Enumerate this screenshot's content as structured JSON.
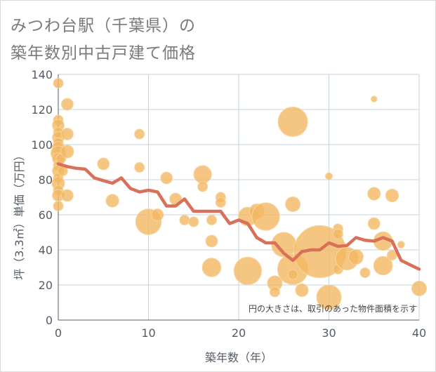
{
  "title_line1": "みつわ台駅（千葉県）の",
  "title_line2": "築年数別中古戸建て価格",
  "chart_data": {
    "type": "scatter",
    "xlabel": "築年数（年）",
    "ylabel": "坪（3.3㎡）単価（万円）",
    "xlim": [
      0,
      40
    ],
    "ylim": [
      0,
      140
    ],
    "xticks": [
      0,
      10,
      20,
      30,
      40
    ],
    "yticks": [
      0,
      20,
      40,
      60,
      80,
      100,
      120,
      140
    ],
    "grid": true,
    "note": "円の大きさは、取引のあった物件面積を示す",
    "colors": {
      "bubble": "#f2b861",
      "bubble_stroke": "#f7d49b",
      "line": "#d9705a",
      "grid": "#c5d3e0",
      "axis": "#555b66"
    },
    "bubbles": [
      {
        "x": 0,
        "y": 135,
        "s": 1.0
      },
      {
        "x": 0,
        "y": 114,
        "s": 1.0
      },
      {
        "x": 0,
        "y": 111,
        "s": 1.2
      },
      {
        "x": 0,
        "y": 107,
        "s": 1.0
      },
      {
        "x": 0,
        "y": 104,
        "s": 1.2
      },
      {
        "x": 0,
        "y": 101,
        "s": 1.0
      },
      {
        "x": 0,
        "y": 98,
        "s": 1.3
      },
      {
        "x": 0,
        "y": 95,
        "s": 1.5
      },
      {
        "x": 0,
        "y": 92,
        "s": 1.2
      },
      {
        "x": 0,
        "y": 88,
        "s": 1.0
      },
      {
        "x": 0,
        "y": 85,
        "s": 1.2
      },
      {
        "x": 0,
        "y": 81,
        "s": 1.0
      },
      {
        "x": 0,
        "y": 78,
        "s": 1.3
      },
      {
        "x": 0,
        "y": 74,
        "s": 1.0
      },
      {
        "x": 0,
        "y": 71,
        "s": 1.2
      },
      {
        "x": 0,
        "y": 65,
        "s": 1.0
      },
      {
        "x": 0.5,
        "y": 85,
        "s": 1.0
      },
      {
        "x": 0.3,
        "y": 92,
        "s": 1.0
      },
      {
        "x": 1,
        "y": 123,
        "s": 1.2
      },
      {
        "x": 1,
        "y": 106,
        "s": 1.2
      },
      {
        "x": 1,
        "y": 96,
        "s": 1.3
      },
      {
        "x": 1,
        "y": 71,
        "s": 1.2
      },
      {
        "x": 5,
        "y": 89,
        "s": 1.2
      },
      {
        "x": 6,
        "y": 68,
        "s": 1.3
      },
      {
        "x": 9,
        "y": 106,
        "s": 1.0
      },
      {
        "x": 9,
        "y": 87,
        "s": 1.0
      },
      {
        "x": 10,
        "y": 56,
        "s": 2.6
      },
      {
        "x": 11,
        "y": 60,
        "s": 1.2
      },
      {
        "x": 12,
        "y": 81,
        "s": 1.2
      },
      {
        "x": 13,
        "y": 69,
        "s": 1.2
      },
      {
        "x": 14,
        "y": 57,
        "s": 1.0
      },
      {
        "x": 15,
        "y": 56,
        "s": 1.0
      },
      {
        "x": 16,
        "y": 83,
        "s": 1.8
      },
      {
        "x": 16,
        "y": 76,
        "s": 1.0
      },
      {
        "x": 17,
        "y": 57,
        "s": 1.0
      },
      {
        "x": 17,
        "y": 45,
        "s": 1.2
      },
      {
        "x": 17,
        "y": 30,
        "s": 1.9
      },
      {
        "x": 18,
        "y": 70,
        "s": 1.0
      },
      {
        "x": 18,
        "y": 67,
        "s": 1.0
      },
      {
        "x": 21,
        "y": 59,
        "s": 1.9
      },
      {
        "x": 21,
        "y": 28,
        "s": 2.8
      },
      {
        "x": 22,
        "y": 62,
        "s": 1.5
      },
      {
        "x": 23,
        "y": 59,
        "s": 2.8
      },
      {
        "x": 24,
        "y": 21,
        "s": 1.5
      },
      {
        "x": 24,
        "y": 16,
        "s": 1.0
      },
      {
        "x": 25,
        "y": 43,
        "s": 2.5
      },
      {
        "x": 26,
        "y": 113,
        "s": 3.0
      },
      {
        "x": 26,
        "y": 66,
        "s": 1.5
      },
      {
        "x": 26,
        "y": 29,
        "s": 3.1
      },
      {
        "x": 26,
        "y": 26,
        "s": 1.0
      },
      {
        "x": 27,
        "y": 17,
        "s": 1.3
      },
      {
        "x": 29,
        "y": 39,
        "s": 5.3
      },
      {
        "x": 30,
        "y": 82,
        "s": 0.7
      },
      {
        "x": 30,
        "y": 13,
        "s": 2.5
      },
      {
        "x": 31,
        "y": 52,
        "s": 1.0
      },
      {
        "x": 31,
        "y": 49,
        "s": 1.0
      },
      {
        "x": 31,
        "y": 29,
        "s": 1.0
      },
      {
        "x": 32,
        "y": 35,
        "s": 2.3
      },
      {
        "x": 33,
        "y": 36,
        "s": 1.5
      },
      {
        "x": 34,
        "y": 27,
        "s": 1.0
      },
      {
        "x": 35,
        "y": 126,
        "s": 0.6
      },
      {
        "x": 35,
        "y": 72,
        "s": 1.3
      },
      {
        "x": 35,
        "y": 55,
        "s": 1.2
      },
      {
        "x": 36,
        "y": 45,
        "s": 1.9
      },
      {
        "x": 36,
        "y": 31,
        "s": 1.9
      },
      {
        "x": 37,
        "y": 71,
        "s": 1.3
      },
      {
        "x": 37,
        "y": 37,
        "s": 1.0
      },
      {
        "x": 38,
        "y": 43,
        "s": 0.7
      },
      {
        "x": 40,
        "y": 18,
        "s": 1.5
      }
    ],
    "average_line": {
      "x": [
        0,
        1,
        2,
        3,
        4,
        5,
        6,
        7,
        8,
        9,
        10,
        11,
        12,
        13,
        14,
        15,
        16,
        17,
        18,
        19,
        20,
        21,
        22,
        23,
        24,
        25,
        26,
        27,
        28,
        29,
        30,
        31,
        32,
        33,
        34,
        35,
        36,
        37,
        38,
        39,
        40
      ],
      "y": [
        89,
        87.5,
        86.5,
        86,
        81,
        79.5,
        78,
        81,
        75,
        73,
        74,
        73,
        65,
        65,
        69,
        62,
        62,
        62,
        62,
        55,
        57,
        55,
        47,
        44,
        44,
        38,
        34,
        39,
        40,
        40,
        44,
        42,
        42.5,
        47,
        45.5,
        45,
        47,
        45,
        34,
        31.5,
        29
      ]
    }
  }
}
